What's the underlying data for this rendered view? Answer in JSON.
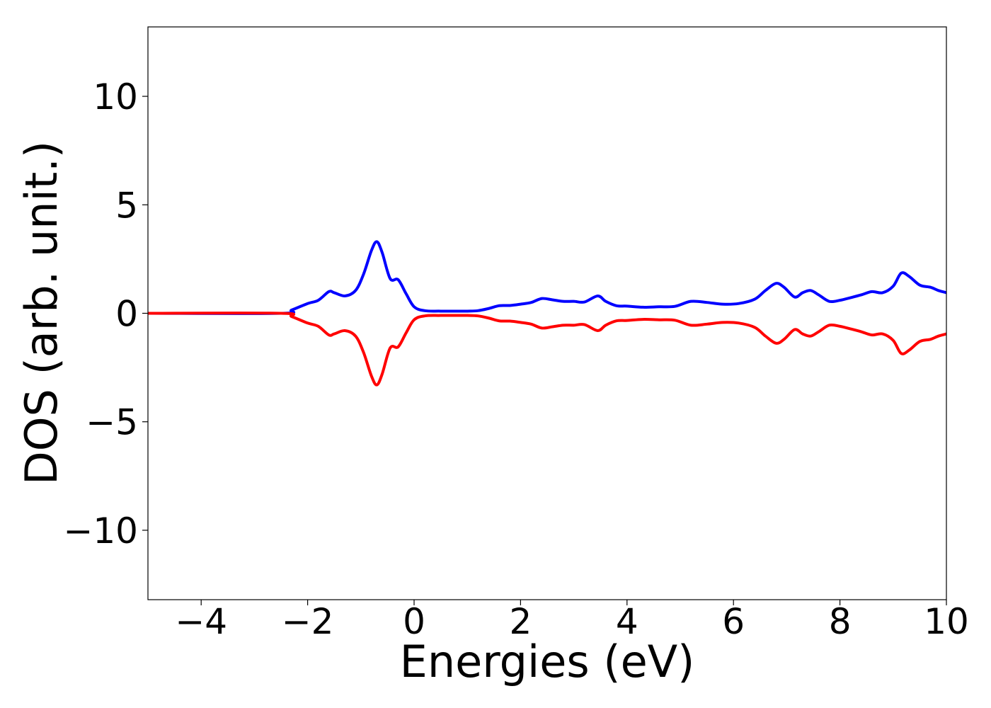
{
  "chart_data": {
    "type": "line",
    "title": "",
    "xlabel": "Energies (eV)",
    "ylabel": "DOS (arb. unit.)",
    "xlim": [
      -5,
      10
    ],
    "ylim": [
      -13.2,
      13.2
    ],
    "x_ticks": [
      -4,
      -2,
      0,
      2,
      4,
      6,
      8,
      10
    ],
    "x_tick_labels": [
      "−4",
      "−2",
      "0",
      "2",
      "4",
      "6",
      "8",
      "10"
    ],
    "y_ticks": [
      10,
      5,
      0,
      -5,
      -10
    ],
    "y_tick_labels": [
      "10",
      "5",
      "0",
      "−5",
      "−10"
    ],
    "grid": false,
    "legend": "none",
    "series": [
      {
        "color": "#0000ff",
        "x": [
          -5.0,
          -2.5,
          -2.3,
          -2.0,
          -1.8,
          -1.6,
          -1.5,
          -1.3,
          -1.1,
          -0.95,
          -0.8,
          -0.7,
          -0.6,
          -0.45,
          -0.3,
          -0.15,
          0.0,
          0.2,
          0.5,
          1.0,
          1.2,
          1.4,
          1.6,
          1.8,
          2.0,
          2.2,
          2.4,
          2.6,
          2.8,
          3.0,
          3.2,
          3.45,
          3.6,
          3.8,
          4.0,
          4.3,
          4.6,
          4.9,
          5.2,
          5.5,
          5.8,
          6.1,
          6.4,
          6.6,
          6.8,
          6.95,
          7.15,
          7.3,
          7.45,
          7.6,
          7.8,
          8.0,
          8.2,
          8.4,
          8.6,
          8.8,
          9.0,
          9.15,
          9.3,
          9.5,
          9.7,
          9.85,
          10.0
        ],
        "y": [
          0,
          0,
          0.15,
          0.45,
          0.6,
          1.0,
          0.95,
          0.8,
          1.05,
          1.8,
          2.9,
          3.3,
          2.8,
          1.6,
          1.55,
          0.9,
          0.3,
          0.12,
          0.1,
          0.1,
          0.12,
          0.22,
          0.35,
          0.36,
          0.42,
          0.5,
          0.68,
          0.62,
          0.55,
          0.55,
          0.52,
          0.8,
          0.55,
          0.35,
          0.33,
          0.28,
          0.3,
          0.32,
          0.55,
          0.5,
          0.42,
          0.45,
          0.65,
          1.05,
          1.38,
          1.2,
          0.75,
          0.95,
          1.05,
          0.85,
          0.55,
          0.6,
          0.72,
          0.85,
          1.0,
          0.95,
          1.25,
          1.85,
          1.7,
          1.3,
          1.2,
          1.05,
          0.95
        ]
      },
      {
        "color": "#ff0000",
        "x": [
          -5.0,
          -2.5,
          -2.3,
          -2.0,
          -1.8,
          -1.6,
          -1.5,
          -1.3,
          -1.1,
          -0.95,
          -0.8,
          -0.7,
          -0.6,
          -0.45,
          -0.3,
          -0.15,
          0.0,
          0.2,
          0.5,
          1.0,
          1.2,
          1.4,
          1.6,
          1.8,
          2.0,
          2.2,
          2.4,
          2.6,
          2.8,
          3.0,
          3.2,
          3.45,
          3.6,
          3.8,
          4.0,
          4.3,
          4.6,
          4.9,
          5.2,
          5.5,
          5.8,
          6.1,
          6.4,
          6.6,
          6.8,
          6.95,
          7.15,
          7.3,
          7.45,
          7.6,
          7.8,
          8.0,
          8.2,
          8.4,
          8.6,
          8.8,
          9.0,
          9.15,
          9.3,
          9.5,
          9.7,
          9.85,
          10.0
        ],
        "y": [
          0,
          0,
          -0.15,
          -0.45,
          -0.6,
          -1.0,
          -0.95,
          -0.8,
          -1.05,
          -1.8,
          -2.9,
          -3.3,
          -2.8,
          -1.6,
          -1.55,
          -0.9,
          -0.3,
          -0.12,
          -0.1,
          -0.1,
          -0.12,
          -0.22,
          -0.35,
          -0.36,
          -0.42,
          -0.5,
          -0.68,
          -0.62,
          -0.55,
          -0.55,
          -0.52,
          -0.8,
          -0.55,
          -0.35,
          -0.33,
          -0.28,
          -0.3,
          -0.32,
          -0.55,
          -0.5,
          -0.42,
          -0.45,
          -0.65,
          -1.05,
          -1.38,
          -1.2,
          -0.75,
          -0.95,
          -1.05,
          -0.85,
          -0.55,
          -0.6,
          -0.72,
          -0.85,
          -1.0,
          -0.95,
          -1.25,
          -1.85,
          -1.7,
          -1.3,
          -1.2,
          -1.05,
          -0.95
        ]
      }
    ]
  }
}
